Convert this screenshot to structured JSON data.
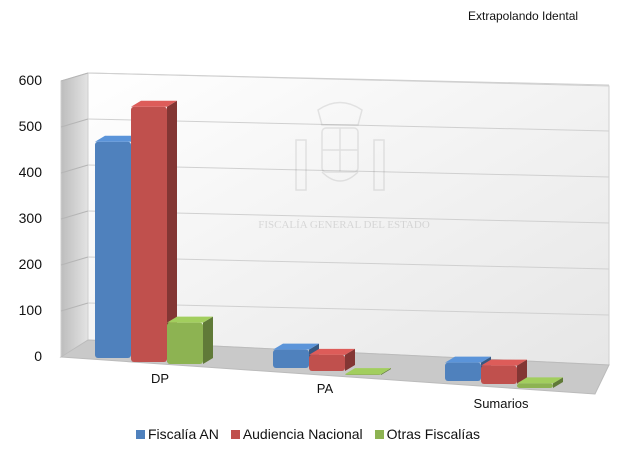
{
  "chart_data": {
    "type": "bar",
    "title": "Extrapolando Idental",
    "categories": [
      "DP",
      "PA",
      "Sumarios"
    ],
    "series": [
      {
        "name": "Fiscalía AN",
        "values": [
          470,
          40,
          40
        ]
      },
      {
        "name": "Audiencia Nacional",
        "values": [
          555,
          35,
          40
        ]
      },
      {
        "name": "Otras Fiscalías",
        "values": [
          90,
          2,
          10
        ]
      }
    ],
    "ylim": [
      0,
      600
    ],
    "yticks": [
      "0",
      "100",
      "200",
      "300",
      "400",
      "500",
      "600"
    ],
    "grid": true,
    "legend": "bottom",
    "style": "3d-clustered-column",
    "colors": {
      "Fiscalía AN": "#4f81bd",
      "Audiencia Nacional": "#c0504d",
      "Otras Fiscalías": "#8db352"
    },
    "watermark": "FISCALÍA GENERAL DEL ESTADO"
  }
}
